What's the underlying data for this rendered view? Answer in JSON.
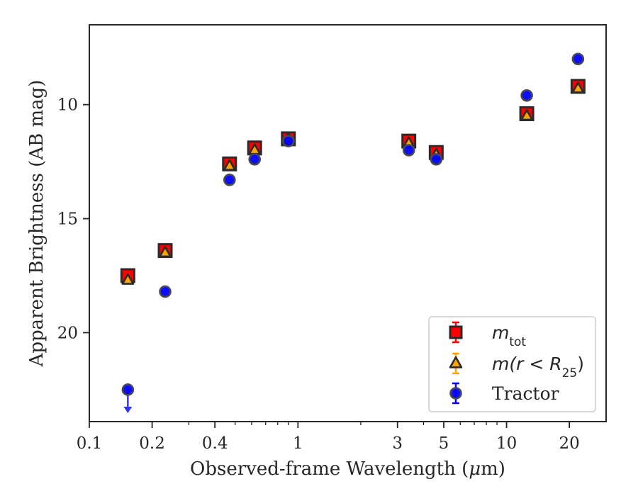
{
  "chart_data": {
    "type": "scatter",
    "xlabel_pre": "Observed-frame Wavelength (",
    "xlabel_mu": "μ",
    "xlabel_post": "m)",
    "ylabel": "Apparent Brightness (AB mag)",
    "x_scale": "log",
    "y_inverted": true,
    "xlim": [
      0.1,
      30
    ],
    "ylim": [
      23.9,
      6.5
    ],
    "x_ticks": [
      {
        "value": 0.1,
        "label": "0.1"
      },
      {
        "value": 0.2,
        "label": "0.2"
      },
      {
        "value": 0.4,
        "label": "0.4"
      },
      {
        "value": 1,
        "label": "1"
      },
      {
        "value": 3,
        "label": "3"
      },
      {
        "value": 5,
        "label": "5"
      },
      {
        "value": 10,
        "label": "10"
      },
      {
        "value": 20,
        "label": "20"
      }
    ],
    "y_ticks": [
      {
        "value": 10,
        "label": "10"
      },
      {
        "value": 15,
        "label": "15"
      },
      {
        "value": 20,
        "label": "20"
      }
    ],
    "legend_position": "lower-right",
    "legend": [
      {
        "main": "m",
        "sub": "tot",
        "tail": ""
      },
      {
        "main": "m(r < R",
        "sub": "25",
        "tail": ")"
      },
      {
        "main": "Tractor",
        "sub": "",
        "tail": ""
      }
    ],
    "colors": {
      "m_tot": "#ff0000",
      "m_r25": "#ffa500",
      "tractor": "#0000ff",
      "tractor_upper_limit": "#3333ff",
      "edge": "#2b2b2b"
    },
    "series": [
      {
        "marker": "square",
        "x": [
          0.153,
          0.231,
          0.47,
          0.62,
          0.9,
          3.4,
          4.6,
          12.5,
          22.0
        ],
        "y": [
          17.5,
          16.4,
          12.6,
          11.9,
          11.5,
          11.6,
          12.1,
          10.4,
          9.2
        ]
      },
      {
        "marker": "triangle",
        "x": [
          0.153,
          0.231,
          0.47,
          0.62,
          0.9,
          3.4,
          4.6,
          12.5,
          22.0
        ],
        "y": [
          17.7,
          16.5,
          12.7,
          12.0,
          11.5,
          11.7,
          12.2,
          10.5,
          9.3
        ]
      },
      {
        "marker": "circle",
        "x": [
          0.231,
          0.47,
          0.62,
          0.9,
          3.4,
          4.6,
          12.5,
          22.0
        ],
        "y": [
          18.2,
          13.3,
          12.4,
          11.6,
          12.0,
          12.4,
          9.6,
          8.0
        ]
      }
    ],
    "upper_limits": [
      {
        "series": "Tractor",
        "x": 0.153,
        "y": 22.5
      }
    ]
  }
}
